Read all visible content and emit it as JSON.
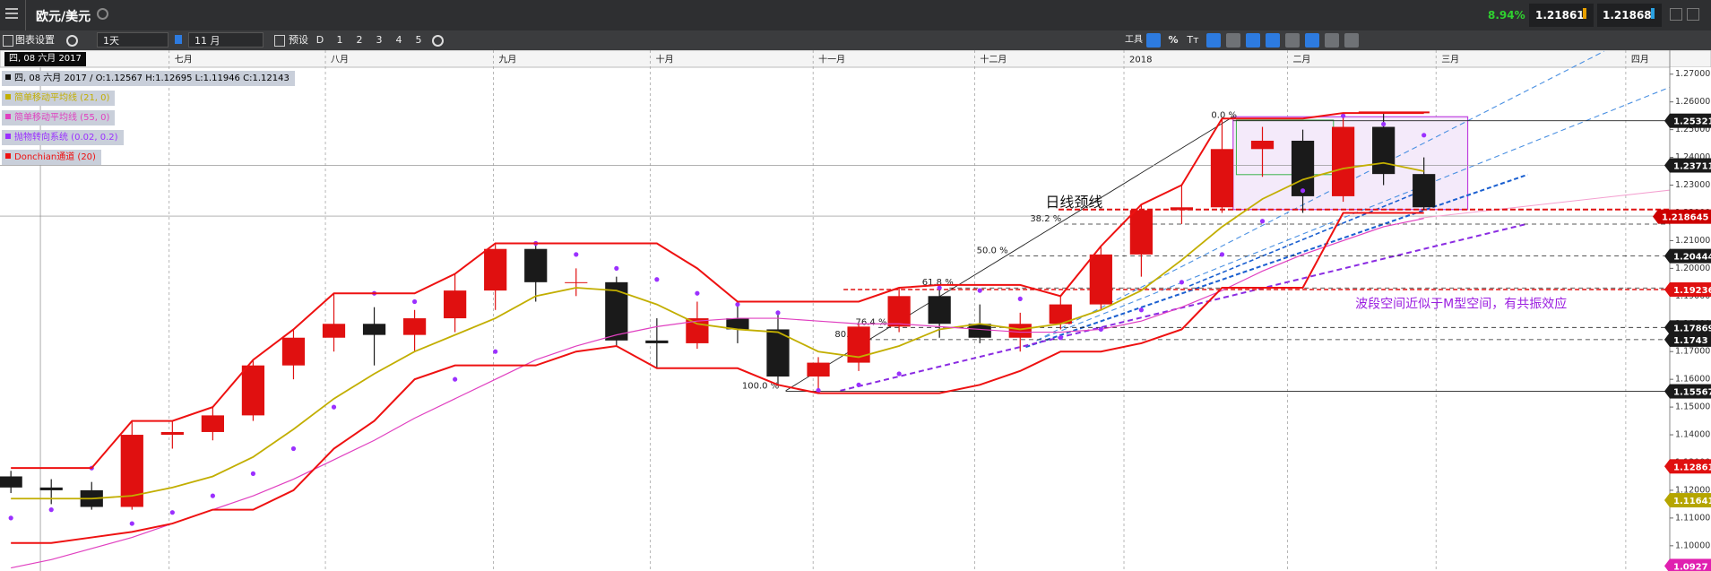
{
  "header": {
    "symbol": "欧元/美元",
    "change": "8.94%",
    "bid": "1.21861",
    "ask": "1.21868"
  },
  "toolbar": {
    "settings": "图表设置",
    "interval": "1天",
    "range": "11 月",
    "presets": "预设",
    "buttons": [
      "D",
      "1",
      "2",
      "3",
      "4",
      "5"
    ],
    "tools": "工具",
    "percent": "%",
    "text_tool": "Tт"
  },
  "info": {
    "date": "四, 08 六月 2017",
    "ohlc": "四, 08 六月 2017 / O:1.12567  H:1.12695  L:1.11946  C:1.12143"
  },
  "chart_data": {
    "type": "candlestick",
    "categories": [
      null,
      null,
      null,
      null,
      null,
      null,
      null,
      null,
      null,
      null,
      null,
      null,
      null,
      null,
      null,
      null,
      null,
      null,
      null,
      null,
      null,
      null,
      null,
      null,
      null,
      null,
      null,
      null,
      null,
      null,
      null,
      null,
      null,
      null,
      null,
      null
    ],
    "open": [
      1.125,
      1.121,
      1.12,
      1.114,
      1.14,
      1.141,
      1.147,
      1.165,
      1.175,
      1.18,
      1.176,
      1.182,
      1.192,
      1.207,
      1.195,
      1.195,
      1.174,
      1.173,
      1.182,
      1.178,
      1.161,
      1.166,
      1.179,
      1.19,
      1.18,
      1.175,
      1.18,
      1.187,
      1.205,
      1.221,
      1.222,
      1.243,
      1.246,
      1.226,
      1.251,
      1.234
    ],
    "high": [
      1.127,
      1.124,
      1.123,
      1.145,
      1.145,
      1.15,
      1.167,
      1.178,
      1.191,
      1.186,
      1.185,
      1.198,
      1.209,
      1.209,
      1.2,
      1.197,
      1.182,
      1.188,
      1.187,
      1.184,
      1.168,
      1.18,
      1.193,
      1.194,
      1.187,
      1.184,
      1.19,
      1.208,
      1.223,
      1.23,
      1.254,
      1.251,
      1.25,
      1.255,
      1.256,
      1.24
    ],
    "low": [
      1.119,
      1.115,
      1.113,
      1.113,
      1.135,
      1.138,
      1.145,
      1.16,
      1.17,
      1.165,
      1.17,
      1.177,
      1.185,
      1.188,
      1.19,
      1.172,
      1.164,
      1.171,
      1.173,
      1.158,
      1.155,
      1.163,
      1.177,
      1.175,
      1.173,
      1.17,
      1.178,
      1.185,
      1.197,
      1.216,
      1.22,
      1.233,
      1.22,
      1.224,
      1.23,
      1.221
    ],
    "close": [
      1.121,
      1.12,
      1.114,
      1.14,
      1.141,
      1.147,
      1.165,
      1.175,
      1.18,
      1.176,
      1.182,
      1.192,
      1.207,
      1.195,
      1.195,
      1.174,
      1.173,
      1.182,
      1.178,
      1.161,
      1.166,
      1.179,
      1.19,
      1.18,
      1.175,
      1.18,
      1.187,
      1.205,
      1.221,
      1.222,
      1.243,
      1.246,
      1.226,
      1.251,
      1.234,
      1.222
    ],
    "up_color": "#e01010",
    "down_color": "#1a1a1a",
    "series": [
      {
        "name": "简单移动平均线 (21, 0)",
        "color": "#c2ae00",
        "values": [
          1.117,
          1.117,
          1.117,
          1.118,
          1.121,
          1.125,
          1.132,
          1.142,
          1.153,
          1.162,
          1.17,
          1.176,
          1.182,
          1.19,
          1.193,
          1.192,
          1.187,
          1.18,
          1.178,
          1.177,
          1.17,
          1.168,
          1.172,
          1.178,
          1.18,
          1.178,
          1.18,
          1.185,
          1.192,
          1.203,
          1.215,
          1.225,
          1.232,
          1.236,
          1.238,
          1.235
        ]
      },
      {
        "name": "简单移动平均线 (55, 0)",
        "color": "#e040c0",
        "values": [
          1.092,
          1.095,
          1.099,
          1.103,
          1.108,
          1.113,
          1.118,
          1.124,
          1.131,
          1.138,
          1.146,
          1.153,
          1.16,
          1.167,
          1.172,
          1.176,
          1.179,
          1.181,
          1.182,
          1.182,
          1.181,
          1.18,
          1.18,
          1.179,
          1.178,
          1.177,
          1.177,
          1.178,
          1.181,
          1.186,
          1.192,
          1.199,
          1.205,
          1.21,
          1.215,
          1.218
        ]
      },
      {
        "name": "抛物转向系统 (0.02, 0.2)",
        "color": "#9b30ff",
        "values": [
          1.11,
          1.113,
          1.128,
          1.108,
          1.112,
          1.118,
          1.126,
          1.135,
          1.15,
          1.191,
          1.188,
          1.16,
          1.17,
          1.209,
          1.205,
          1.2,
          1.196,
          1.191,
          1.187,
          1.184,
          1.156,
          1.158,
          1.162,
          1.193,
          1.192,
          1.189,
          1.175,
          1.178,
          1.185,
          1.195,
          1.205,
          1.217,
          1.228,
          1.255,
          1.252,
          1.248
        ]
      },
      {
        "name": "Donchian通道 (20)",
        "color": "#ee1111",
        "upper": [
          1.128,
          1.128,
          1.128,
          1.145,
          1.145,
          1.15,
          1.167,
          1.178,
          1.191,
          1.191,
          1.191,
          1.198,
          1.209,
          1.209,
          1.209,
          1.209,
          1.209,
          1.2,
          1.188,
          1.188,
          1.188,
          1.188,
          1.193,
          1.194,
          1.194,
          1.194,
          1.19,
          1.208,
          1.223,
          1.23,
          1.254,
          1.254,
          1.254,
          1.256,
          1.256,
          1.256
        ],
        "lower": [
          1.101,
          1.101,
          1.103,
          1.105,
          1.108,
          1.113,
          1.113,
          1.12,
          1.135,
          1.145,
          1.16,
          1.165,
          1.165,
          1.165,
          1.17,
          1.172,
          1.164,
          1.164,
          1.164,
          1.158,
          1.155,
          1.155,
          1.155,
          1.155,
          1.158,
          1.163,
          1.17,
          1.17,
          1.173,
          1.178,
          1.193,
          1.193,
          1.193,
          1.22,
          1.22,
          1.22
        ]
      }
    ],
    "xlim": [
      -0.27,
      41.09
    ],
    "xticks": [
      {
        "value": 3.92,
        "label": "七月"
      },
      {
        "value": 7.79,
        "label": "八月"
      },
      {
        "value": 11.95,
        "label": "九月"
      },
      {
        "value": 15.84,
        "label": "十月"
      },
      {
        "value": 19.87,
        "label": "十一月"
      },
      {
        "value": 23.87,
        "label": "十二月"
      },
      {
        "value": 27.57,
        "label": "2018"
      },
      {
        "value": 31.62,
        "label": "二月"
      },
      {
        "value": 35.3,
        "label": "三月"
      },
      {
        "value": 40.0,
        "label": "四月"
      }
    ],
    "ylim": [
      1.0909,
      1.2725
    ],
    "yticks": [
      {
        "value": 1.27,
        "label": "1.27000"
      },
      {
        "value": 1.26,
        "label": "1.26000"
      },
      {
        "value": 1.25,
        "label": "1.25000"
      },
      {
        "value": 1.24,
        "label": "1.24000"
      },
      {
        "value": 1.23,
        "label": "1.23000"
      },
      {
        "value": 1.22,
        "label": "1.22000"
      },
      {
        "value": 1.21,
        "label": "1.21000"
      },
      {
        "value": 1.2,
        "label": "1.20000"
      },
      {
        "value": 1.19,
        "label": "1.19000"
      },
      {
        "value": 1.18,
        "label": "1.18000"
      },
      {
        "value": 1.17,
        "label": "1.17000"
      },
      {
        "value": 1.16,
        "label": "1.16000"
      },
      {
        "value": 1.15,
        "label": "1.15000"
      },
      {
        "value": 1.14,
        "label": "1.14000"
      },
      {
        "value": 1.13,
        "label": "1.13000"
      },
      {
        "value": 1.12,
        "label": "1.12000"
      },
      {
        "value": 1.11,
        "label": "1.11000"
      },
      {
        "value": 1.1,
        "label": "1.10000"
      }
    ],
    "xgrid": true,
    "levels": [
      {
        "value": 1.25321,
        "color": "#1a1a1a"
      },
      {
        "value": 1.23711,
        "color": "#1a1a1a"
      },
      {
        "value": 1.218645,
        "color": "#cc0000"
      },
      {
        "value": 1.20444,
        "color": "#1a1a1a"
      },
      {
        "value": 1.19236,
        "color": "#e01010"
      },
      {
        "value": 1.17869,
        "color": "#1a1a1a"
      },
      {
        "value": 1.1743,
        "color": "#1a1a1a"
      },
      {
        "value": 1.15567,
        "color": "#1a1a1a"
      },
      {
        "value": 1.12861,
        "color": "#e01010"
      },
      {
        "value": 1.11641,
        "color": "#b5a500"
      },
      {
        "value": 1.0927,
        "color": "#e020b0"
      }
    ],
    "fib_levels": [
      {
        "value": 1.25321,
        "label": "0.0 %"
      },
      {
        "value": 1.21595,
        "label": "38.2 %"
      },
      {
        "value": 1.20444,
        "label": "50.0 %"
      },
      {
        "value": 1.19293,
        "label": "61.8 %"
      },
      {
        "value": 1.17869,
        "label": "76.4 %"
      },
      {
        "value": 1.1743,
        "label": "80.9 %"
      },
      {
        "value": 1.15567,
        "label": "100.0 %"
      }
    ],
    "annotations": {
      "neckline": "日线颈线",
      "note": "波段空间近似于M型空间，有共振效应"
    }
  }
}
